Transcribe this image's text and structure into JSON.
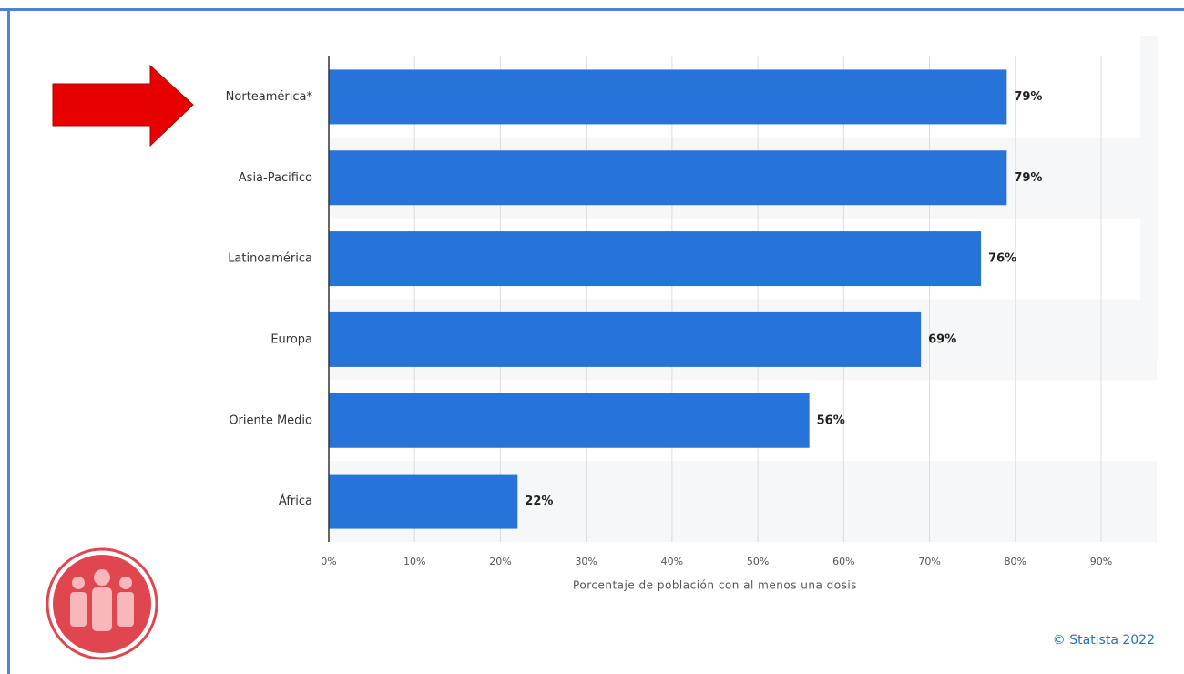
{
  "chart_data": {
    "type": "bar",
    "orientation": "horizontal",
    "categories": [
      "Norteamérica*",
      "Asia-Pacifico",
      "Latinoamérica",
      "Europa",
      "Oriente Medio",
      "África"
    ],
    "values": [
      79,
      79,
      76,
      69,
      56,
      22
    ],
    "value_labels": [
      "79%",
      "79%",
      "76%",
      "69%",
      "56%",
      "22%"
    ],
    "color": "#2673d9",
    "xlim": [
      0,
      90
    ],
    "xticks": [
      {
        "value": 0,
        "label": "0%"
      },
      {
        "value": 10,
        "label": "10%"
      },
      {
        "value": 20,
        "label": "20%"
      },
      {
        "value": 30,
        "label": "30%"
      },
      {
        "value": 40,
        "label": "40%"
      },
      {
        "value": 50,
        "label": "50%"
      },
      {
        "value": 60,
        "label": "60%"
      },
      {
        "value": 70,
        "label": "70%"
      },
      {
        "value": 80,
        "label": "80%"
      },
      {
        "value": 90,
        "label": "90%"
      }
    ],
    "xlabel": "Porcentaje de población con al menos una dosis",
    "grid": true,
    "source": "© Statista 2022"
  }
}
